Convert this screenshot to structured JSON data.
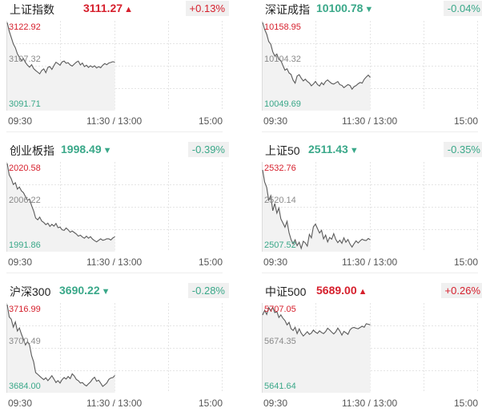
{
  "colors": {
    "up": "#d6202d",
    "down": "#3aa889",
    "line": "#5a5a5a",
    "mid_label": "#8a8a8a",
    "grid": "#e5e5e5",
    "area": "#f2f2f2"
  },
  "time_axis": {
    "open": "09:30",
    "mid": "11:30 / 13:00",
    "close": "15:00"
  },
  "indices": [
    {
      "name": "上证指数",
      "price": "3111.27",
      "direction": "up",
      "arrow": "▲",
      "change": "+0.13%",
      "chart_data": {
        "type": "line",
        "ylim": [
          3091.71,
          3122.92
        ],
        "y_labels": {
          "high": "3122.92",
          "mid": "3107.32",
          "low": "3091.71"
        },
        "x_span_minutes": 240,
        "elapsed_minutes": 120,
        "values": [
          3122.9,
          3119.8,
          3117.5,
          3115.2,
          3113.8,
          3111.6,
          3110.4,
          3109.2,
          3109.9,
          3108.5,
          3107.5,
          3106.8,
          3107.7,
          3106.3,
          3105.6,
          3105.0,
          3104.4,
          3105.6,
          3106.2,
          3104.8,
          3106.7,
          3107.0,
          3106.0,
          3107.4,
          3108.6,
          3108.1,
          3107.5,
          3108.7,
          3109.0,
          3108.2,
          3108.4,
          3107.6,
          3107.2,
          3107.9,
          3108.6,
          3109.0,
          3107.6,
          3108.3,
          3107.0,
          3107.5,
          3106.7,
          3107.3,
          3106.8,
          3107.3,
          3106.5,
          3107.0,
          3106.6,
          3107.5,
          3108.1,
          3107.7,
          3108.3,
          3108.5,
          3108.8,
          3108.6
        ]
      }
    },
    {
      "name": "深证成指",
      "price": "10100.78",
      "direction": "down",
      "arrow": "▼",
      "change": "-0.04%",
      "chart_data": {
        "type": "line",
        "ylim": [
          10049.69,
          10158.95
        ],
        "y_labels": {
          "high": "10158.95",
          "mid": "10104.32",
          "low": "10049.69"
        },
        "x_span_minutes": 240,
        "elapsed_minutes": 120,
        "values": [
          10158.9,
          10150.3,
          10144.2,
          10135.0,
          10131.4,
          10121.8,
          10116.7,
          10119.1,
          10112.3,
          10111.0,
          10104.4,
          10098.8,
          10100.5,
          10095.2,
          10093.3,
          10086.0,
          10082.4,
          10091.4,
          10093.0,
          10088.6,
          10085.2,
          10087.3,
          10084.5,
          10082.6,
          10079.0,
          10081.3,
          10084.5,
          10080.6,
          10078.7,
          10083.0,
          10080.3,
          10084.5,
          10086.4,
          10084.0,
          10081.9,
          10081.2,
          10082.8,
          10084.4,
          10080.4,
          10079.5,
          10076.6,
          10078.6,
          10080.5,
          10079.4,
          10074.7,
          10077.9,
          10079.2,
          10081.6,
          10083.2,
          10082.4,
          10087.2,
          10090.1,
          10092.5,
          10089.6
        ]
      }
    },
    {
      "name": "创业板指",
      "price": "1998.49",
      "direction": "down",
      "arrow": "▼",
      "change": "-0.39%",
      "chart_data": {
        "type": "line",
        "ylim": [
          1991.86,
          2020.58
        ],
        "y_labels": {
          "high": "2020.58",
          "mid": "2006.22",
          "low": "1991.86"
        },
        "x_span_minutes": 240,
        "elapsed_minutes": 120,
        "values": [
          2020.6,
          2016.8,
          2015.5,
          2013.6,
          2014.2,
          2012.1,
          2012.8,
          2011.5,
          2010.9,
          2009.6,
          2008.4,
          2008.8,
          2006.6,
          2004.9,
          2002.5,
          2001.9,
          2002.8,
          2001.5,
          2001.0,
          2000.3,
          2000.8,
          1999.7,
          2000.4,
          1999.8,
          2000.7,
          1999.3,
          1999.5,
          1998.6,
          1998.4,
          1999.2,
          1998.6,
          1997.8,
          1998.2,
          1997.7,
          1997.2,
          1996.5,
          1996.8,
          1996.2,
          1995.8,
          1996.5,
          1995.8,
          1996.3,
          1995.5,
          1995.0,
          1994.6,
          1995.1,
          1995.6,
          1995.1,
          1995.3,
          1995.6,
          1995.6,
          1995.2,
          1995.9,
          1996.3
        ]
      }
    },
    {
      "name": "上证50",
      "price": "2511.43",
      "direction": "down",
      "arrow": "▼",
      "change": "-0.35%",
      "chart_data": {
        "type": "line",
        "ylim": [
          2507.52,
          2532.76
        ],
        "y_labels": {
          "high": "2532.76",
          "mid": "2520.14",
          "low": "2507.52"
        },
        "x_span_minutes": 240,
        "elapsed_minutes": 120,
        "values": [
          2530.9,
          2527.4,
          2525.8,
          2522.1,
          2523.4,
          2519.0,
          2521.1,
          2518.3,
          2519.8,
          2516.6,
          2515.4,
          2514.2,
          2515.9,
          2512.6,
          2510.6,
          2509.3,
          2510.5,
          2508.8,
          2509.8,
          2508.0,
          2510.1,
          2509.6,
          2508.7,
          2512.1,
          2511.1,
          2514.3,
          2515.1,
          2513.8,
          2512.5,
          2513.3,
          2510.8,
          2511.9,
          2509.9,
          2511.2,
          2510.7,
          2512.3,
          2510.6,
          2509.7,
          2510.4,
          2509.5,
          2511.1,
          2509.8,
          2510.6,
          2509.3,
          2508.4,
          2509.4,
          2510.2,
          2509.6,
          2510.2,
          2510.7,
          2510.4,
          2510.3,
          2510.9,
          2510.5
        ]
      }
    },
    {
      "name": "沪深300",
      "price": "3690.22",
      "direction": "down",
      "arrow": "▼",
      "change": "-0.28%",
      "chart_data": {
        "type": "line",
        "ylim": [
          3684.0,
          3716.99
        ],
        "y_labels": {
          "high": "3716.99",
          "mid": "3700.49",
          "low": "3684.00"
        },
        "x_span_minutes": 240,
        "elapsed_minutes": 120,
        "values": [
          3717.0,
          3712.3,
          3711.4,
          3708.4,
          3710.4,
          3706.9,
          3708.1,
          3705.7,
          3703.8,
          3701.6,
          3702.9,
          3701.6,
          3697.5,
          3695.2,
          3691.1,
          3690.4,
          3689.7,
          3689.0,
          3688.4,
          3689.1,
          3688.0,
          3688.9,
          3689.9,
          3688.6,
          3687.3,
          3688.0,
          3687.1,
          3688.4,
          3689.2,
          3688.6,
          3689.6,
          3688.8,
          3690.6,
          3689.8,
          3688.5,
          3688.0,
          3687.1,
          3687.3,
          3686.5,
          3686.0,
          3686.8,
          3687.5,
          3688.6,
          3689.3,
          3687.8,
          3688.2,
          3687.1,
          3685.8,
          3686.4,
          3687.1,
          3688.5,
          3689.0,
          3689.2,
          3690.0
        ]
      }
    },
    {
      "name": "中证500",
      "price": "5689.00",
      "direction": "up",
      "arrow": "▲",
      "change": "+0.26%",
      "chart_data": {
        "type": "line",
        "ylim": [
          5641.64,
          5707.05
        ],
        "y_labels": {
          "high": "5707.05",
          "mid": "5674.35",
          "low": "5641.64"
        },
        "x_span_minutes": 240,
        "elapsed_minutes": 120,
        "values": [
          5699.2,
          5702.7,
          5699.6,
          5704.8,
          5702.4,
          5704.9,
          5701.0,
          5701.8,
          5697.3,
          5699.3,
          5696.7,
          5695.0,
          5691.7,
          5693.6,
          5688.8,
          5687.5,
          5689.9,
          5685.1,
          5688.7,
          5685.5,
          5683.3,
          5684.9,
          5686.6,
          5684.6,
          5685.5,
          5687.8,
          5686.2,
          5685.3,
          5687.2,
          5686.0,
          5685.1,
          5686.7,
          5689.2,
          5687.9,
          5686.2,
          5684.9,
          5686.5,
          5689.3,
          5687.1,
          5684.0,
          5686.8,
          5685.8,
          5684.6,
          5687.9,
          5689.4,
          5689.8,
          5689.2,
          5688.8,
          5689.8,
          5690.7,
          5689.9,
          5692.6,
          5692.2,
          5691.7
        ]
      }
    }
  ]
}
